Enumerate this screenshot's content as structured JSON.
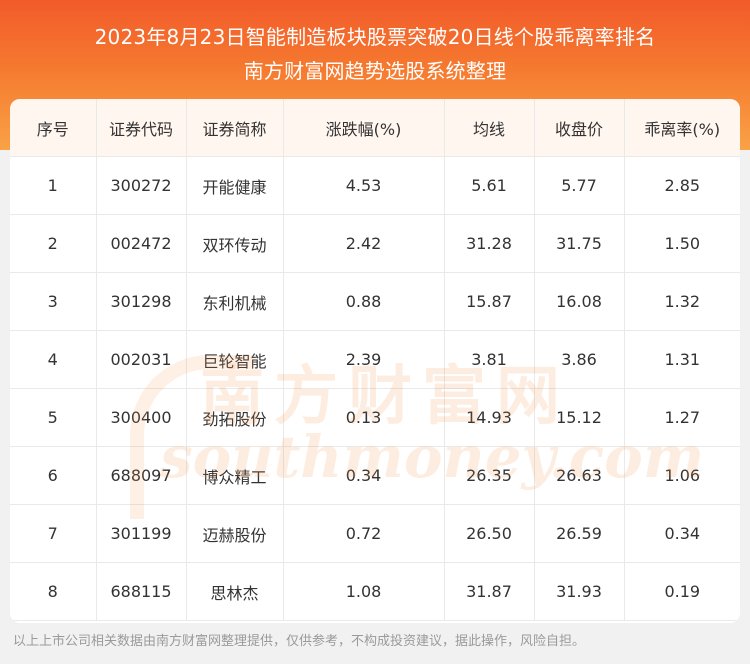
{
  "header": {
    "title": "2023年8月23日智能制造板块股票突破20日线个股乖离率排名",
    "subtitle": "南方财富网趋势选股系统整理"
  },
  "table": {
    "columns": [
      "序号",
      "证券代码",
      "证券简称",
      "涨跌幅(%)",
      "均线",
      "收盘价",
      "乖离率(%)"
    ],
    "rows": [
      [
        "1",
        "300272",
        "开能健康",
        "4.53",
        "5.61",
        "5.77",
        "2.85"
      ],
      [
        "2",
        "002472",
        "双环传动",
        "2.42",
        "31.28",
        "31.75",
        "1.50"
      ],
      [
        "3",
        "301298",
        "东利机械",
        "0.88",
        "15.87",
        "16.08",
        "1.32"
      ],
      [
        "4",
        "002031",
        "巨轮智能",
        "2.39",
        "3.81",
        "3.86",
        "1.31"
      ],
      [
        "5",
        "300400",
        "劲拓股份",
        "0.13",
        "14.93",
        "15.12",
        "1.27"
      ],
      [
        "6",
        "688097",
        "博众精工",
        "0.34",
        "26.35",
        "26.63",
        "1.06"
      ],
      [
        "7",
        "301199",
        "迈赫股份",
        "0.72",
        "26.50",
        "26.59",
        "0.34"
      ],
      [
        "8",
        "688115",
        "思林杰",
        "1.08",
        "31.87",
        "31.93",
        "0.19"
      ]
    ]
  },
  "watermark": {
    "cn": "南方财富网",
    "en": "southmoney.com"
  },
  "footer": {
    "note": "以上上市公司相关数据由南方财富网整理提供，仅供参考，不构成投资建议，据此操作，风险自担。"
  },
  "colors": {
    "header_top": "#f25a2a",
    "header_bottom": "#f9a246",
    "table_header_bg": "#fff6ef",
    "text": "#333333",
    "footer_text": "#9a9a9a"
  }
}
